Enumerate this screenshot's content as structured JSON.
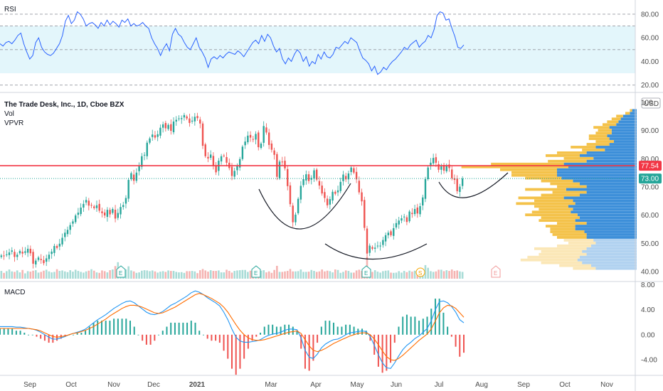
{
  "header": {
    "symbol_title": "The Trade Desk, Inc., 1D, Cboe BZX",
    "vol_label": "Vol",
    "vpvr_label": "VPVR",
    "currency": "USD"
  },
  "colors": {
    "up": "#26a69a",
    "down": "#ef5350",
    "rsi_line": "#2962ff",
    "rsi_band": "#e3f6fb",
    "macd_line": "#2196f3",
    "signal_line": "#ff6d00",
    "hline": "#f23645",
    "arc": "#131722",
    "vp_up": "#3d8fd9",
    "vp_down": "#f4c24a"
  },
  "chart_data": [
    {
      "type": "line",
      "title": "RSI",
      "ylim": [
        15,
        92
      ],
      "ticks": [
        "80.00",
        "60.00",
        "40.00",
        "20.00"
      ],
      "band": [
        30,
        70
      ],
      "guides": [
        80,
        70,
        50,
        20
      ],
      "series": [
        {
          "values": [
            55,
            53,
            56,
            57,
            55,
            58,
            62,
            64,
            55,
            48,
            42,
            45,
            56,
            60,
            52,
            48,
            46,
            45,
            47,
            51,
            55,
            62,
            74,
            79,
            72,
            75,
            82,
            80,
            76,
            70,
            72,
            73,
            71,
            68,
            73,
            70,
            75,
            71,
            74,
            72,
            69,
            75,
            73,
            76,
            70,
            72,
            70,
            71,
            73,
            70,
            68,
            60,
            55,
            51,
            45,
            51,
            55,
            49,
            63,
            68,
            63,
            61,
            56,
            52,
            50,
            55,
            60,
            52,
            48,
            43,
            35,
            42,
            44,
            42,
            45,
            43,
            46,
            48,
            47,
            46,
            49,
            47,
            44,
            48,
            52,
            56,
            58,
            55,
            62,
            57,
            63,
            60,
            53,
            48,
            51,
            42,
            38,
            43,
            40,
            46,
            50,
            47,
            40,
            44,
            36,
            40,
            38,
            46,
            42,
            48,
            44,
            43,
            46,
            52,
            51,
            54,
            57,
            55,
            60,
            58,
            56,
            49,
            43,
            41,
            38,
            32,
            36,
            29,
            31,
            35,
            33,
            37,
            40,
            42,
            45,
            48,
            52,
            50,
            54,
            56,
            58,
            52,
            55,
            57,
            62,
            60,
            67,
            79,
            82,
            81,
            75,
            76,
            68,
            61,
            52,
            51,
            54
          ]
        }
      ]
    },
    {
      "type": "candlestick",
      "categories": [
        "Sep",
        "Oct",
        "Nov",
        "Dec",
        "2021",
        "Mar",
        "Apr",
        "May",
        "Jun",
        "Jul",
        "Aug",
        "Sep",
        "Oct",
        "Nov"
      ],
      "ylim": [
        38,
        101
      ],
      "ticks": [
        "100",
        "90.00",
        "80.00",
        "70.00",
        "60.00",
        "50.00",
        "40.00"
      ],
      "hline": {
        "value": 77.54,
        "label": "77.54"
      },
      "last": {
        "value": 73.0,
        "label": "73.00"
      },
      "closes": [
        45.7,
        45.5,
        46.1,
        46.8,
        47.5,
        45.2,
        46.0,
        47.3,
        46.4,
        47.2,
        48.1,
        46.5,
        42.8,
        43.9,
        45.0,
        44.1,
        43.0,
        44.7,
        46.0,
        47.1,
        49.1,
        48.4,
        49.9,
        52.0,
        53.8,
        54.8,
        56.5,
        57.8,
        59.9,
        60.9,
        62.7,
        64.0,
        65.4,
        63.4,
        63.6,
        62.5,
        63.5,
        61.6,
        60.7,
        59.9,
        61.9,
        60.3,
        62.2,
        58.8,
        60.8,
        62.9,
        63.6,
        66.1,
        72.5,
        74.9,
        72.2,
        75.1,
        77.4,
        80.9,
        81.4,
        85.7,
        87.2,
        88.6,
        87.5,
        88.7,
        91.0,
        92.2,
        90.8,
        92.0,
        89.9,
        93.2,
        93.8,
        94.3,
        94.4,
        95.5,
        94.3,
        92.7,
        93.5,
        94.9,
        94.4,
        92.5,
        84.6,
        80.9,
        80.1,
        81.5,
        77.7,
        75.2,
        79.3,
        80.9,
        81.1,
        78.6,
        76.7,
        73.9,
        75.7,
        77.4,
        79.9,
        84.3,
        86.1,
        88.2,
        87.5,
        86.8,
        88.8,
        84.1,
        85.4,
        91.6,
        89.3,
        84.9,
        83.2,
        81.4,
        73.6,
        79.0,
        78.8,
        76.6,
        70.3,
        63.9,
        57.5,
        60.2,
        65.8,
        70.4,
        72.8,
        74.5,
        72.1,
        73.2,
        75.9,
        72.6,
        70.5,
        67.7,
        66.1,
        63.5,
        65.7,
        68.3,
        67.6,
        68.8,
        71.8,
        74.4,
        72.7,
        74.8,
        76.9,
        75.1,
        72.7,
        68.1,
        64.9,
        55.5,
        46.4,
        49.2,
        48.1,
        48.5,
        49.2,
        49.2,
        51.2,
        52.9,
        53.8,
        52.9,
        55.4,
        57.2,
        58.1,
        58.9,
        59.5,
        57.6,
        61.3,
        60.4,
        62.2,
        60.6,
        63.2,
        66.3,
        72.8,
        76.9,
        78.6,
        80.3,
        78.6,
        76.1,
        77.3,
        75.8,
        77.7,
        76.7,
        73.1,
        72.5,
        68.5,
        70.1,
        73.0
      ]
    },
    {
      "type": "bar",
      "title": "Vol",
      "values": [
        3.2,
        2.4,
        3.1,
        3.8,
        3.0,
        2.8,
        3.4,
        2.6,
        3.6,
        2.2,
        3.1,
        2.9,
        3.3,
        3.5,
        2.5,
        2.8,
        3.3,
        3.7,
        3.0,
        2.6,
        2.8,
        3.9,
        3.2,
        3.4,
        3.0,
        2.7,
        3.5,
        2.9,
        3.7,
        3.2,
        2.8,
        2.5,
        3.0,
        3.3,
        3.9,
        3.3,
        2.6,
        2.4,
        3.4,
        3.1,
        2.6,
        3.5,
        3.8,
        5.2,
        6.8,
        3.4,
        2.9,
        3.8,
        5.1,
        3.4,
        3.0,
        2.4,
        2.6,
        3.3,
        3.5,
        3.4,
        3.1,
        3.4,
        3.0,
        2.5,
        2.9,
        3.1,
        2.8,
        3.4,
        3.2,
        3.2,
        2.8,
        2.6,
        2.7,
        2.4,
        3.1,
        3.1,
        3.2,
        3.0,
        2.3,
        3.5,
        4.0,
        3.4,
        2.9,
        3.5,
        3.2,
        3.2,
        3.4,
        2.6,
        2.6,
        3.7,
        3.2,
        2.5,
        3.2,
        3.4,
        3.5,
        3.6,
        3.6,
        2.8,
        3.3,
        3.0,
        3.5,
        3.1,
        3.3,
        3.5,
        2.6,
        3.0,
        2.4,
        3.6,
        5.3,
        2.8,
        2.8,
        3.0,
        3.2,
        4.0,
        3.0,
        3.0,
        3.1,
        3.8,
        2.8,
        2.8,
        2.9,
        3.6,
        3.2,
        2.8,
        3.0,
        3.8,
        3.0,
        3.3,
        3.1,
        2.6,
        3.8,
        3.6,
        2.4,
        2.8,
        3.4,
        3.2,
        2.5,
        2.5,
        3.4,
        3.7,
        3.2,
        4.6,
        8.8,
        4.0,
        2.8,
        3.5,
        2.9,
        2.5,
        3.1,
        3.3,
        3.4,
        2.5,
        2.4,
        2.5,
        3.1,
        2.5,
        3.2,
        2.7,
        3.3,
        2.9,
        3.3,
        3.3,
        3.0,
        3.8,
        5.6,
        4.5,
        3.1,
        2.8,
        3.0,
        3.7,
        3.7,
        3.1,
        3.5,
        3.2,
        3.8,
        3.2,
        3.4,
        3.0,
        2.8
      ],
      "earnings_markers": [
        "E",
        "E",
        "E",
        "S",
        "E"
      ]
    },
    {
      "type": "histogram",
      "title": "VPVR",
      "price_bins": [
        97,
        96,
        95,
        94,
        93,
        92,
        91,
        90,
        89,
        88,
        87,
        86,
        85,
        84,
        83,
        82,
        81,
        80,
        79,
        78,
        77,
        76,
        75,
        74,
        73,
        72,
        71,
        70,
        69,
        68,
        67,
        66,
        65,
        64,
        63,
        62,
        61,
        60,
        59,
        58,
        57,
        56,
        55,
        54,
        53,
        52,
        51,
        50,
        49,
        48,
        47,
        46,
        45,
        44,
        43,
        42,
        41,
        40
      ],
      "up": [
        4,
        6,
        12,
        14,
        16,
        18,
        24,
        22,
        22,
        26,
        24,
        20,
        24,
        36,
        28,
        44,
        50,
        38,
        44,
        64,
        60,
        70,
        70,
        70,
        66,
        56,
        50,
        44,
        62,
        44,
        50,
        64,
        56,
        54,
        60,
        56,
        58,
        52,
        50,
        54,
        44,
        54,
        54,
        46,
        44,
        44,
        38,
        36,
        40,
        44,
        48,
        44,
        50,
        52,
        48,
        40,
        36,
        0
      ],
      "down": [
        2,
        4,
        6,
        8,
        10,
        12,
        14,
        12,
        14,
        16,
        18,
        16,
        20,
        22,
        20,
        26,
        30,
        26,
        34,
        64,
        94,
        50,
        40,
        40,
        32,
        28,
        26,
        26,
        36,
        30,
        34,
        40,
        34,
        52,
        30,
        30,
        34,
        46,
        34,
        32,
        26,
        26,
        22,
        30,
        30,
        26,
        26,
        24,
        30,
        46,
        36,
        42,
        46,
        50,
        36,
        28,
        20,
        0
      ]
    },
    {
      "type": "line",
      "title": "MACD",
      "ylim": [
        -6.5,
        8.5
      ],
      "ticks": [
        "8.00",
        "4.00",
        "0.00",
        "-4.00"
      ],
      "series": [
        {
          "values": [
            1.3,
            1.3,
            1.3,
            1.3,
            1.2,
            1.2,
            1.1,
            1.0,
            0.9,
            0.7,
            0.4,
            0.0,
            -0.4,
            -0.7,
            -0.7,
            -0.5,
            -0.3,
            0.0,
            0.2,
            0.4,
            0.6,
            0.9,
            1.4,
            1.9,
            2.4,
            2.8,
            3.2,
            3.7,
            4.2,
            4.6,
            5.0,
            5.3,
            5.4,
            5.1,
            4.6,
            4.1,
            3.6,
            3.3,
            3.2,
            3.4,
            3.7,
            4.2,
            4.7,
            5.0,
            5.4,
            5.8,
            6.2,
            6.7,
            7.0,
            6.8,
            6.4,
            5.9,
            5.5,
            5.1,
            4.6,
            3.6,
            2.4,
            0.9,
            -0.4,
            -1.0,
            -1.2,
            -1.2,
            -1.1,
            -1.0,
            -0.8,
            -0.4,
            -0.1,
            0.1,
            0.2,
            0.4,
            0.7,
            0.9,
            0.9,
            0.8,
            -0.5,
            -2.5,
            -3.6,
            -3.8,
            -3.1,
            -2.1,
            -1.5,
            -1.1,
            -0.8,
            -0.7,
            -0.4,
            0.0,
            0.3,
            0.4,
            0.5,
            0.6,
            0.5,
            -0.3,
            -1.7,
            -3.2,
            -4.5,
            -5.3,
            -5.4,
            -4.5,
            -3.4,
            -2.4,
            -1.7,
            -1.2,
            -0.6,
            -0.2,
            0.4,
            1.0,
            2.2,
            4.0,
            5.3,
            5.4,
            5.1,
            4.5,
            3.6,
            2.4,
            1.9
          ]
        },
        {
          "values": [
            1.0,
            1.0,
            1.0,
            1.0,
            1.0,
            1.0,
            1.0,
            1.0,
            0.9,
            0.8,
            0.6,
            0.3,
            0.0,
            -0.3,
            -0.4,
            -0.3,
            -0.2,
            0.0,
            0.2,
            0.3,
            0.5,
            0.7,
            1.0,
            1.3,
            1.7,
            2.1,
            2.5,
            3.0,
            3.4,
            3.8,
            4.2,
            4.5,
            4.7,
            4.7,
            4.6,
            4.4,
            4.1,
            3.8,
            3.5,
            3.4,
            3.5,
            3.8,
            4.1,
            4.4,
            4.8,
            5.2,
            5.6,
            6.0,
            6.4,
            6.6,
            6.4,
            6.1,
            5.8,
            5.4,
            5.0,
            4.4,
            3.6,
            2.6,
            1.6,
            0.7,
            0.0,
            -0.5,
            -0.8,
            -0.9,
            -0.9,
            -0.8,
            -0.6,
            -0.4,
            -0.2,
            0.0,
            0.2,
            0.4,
            0.5,
            0.6,
            0.2,
            -0.8,
            -1.8,
            -2.5,
            -2.7,
            -2.5,
            -2.2,
            -1.8,
            -1.4,
            -1.1,
            -0.8,
            -0.5,
            -0.2,
            0.0,
            0.2,
            0.3,
            0.3,
            0.0,
            -0.7,
            -1.6,
            -2.6,
            -3.5,
            -4.0,
            -4.1,
            -3.8,
            -3.3,
            -2.7,
            -2.1,
            -1.5,
            -0.9,
            -0.4,
            0.1,
            0.9,
            2.2,
            3.5,
            4.3,
            4.7,
            4.6,
            4.2,
            3.5,
            2.8
          ]
        }
      ]
    }
  ],
  "time_axis": {
    "labels": [
      "Sep",
      "Oct",
      "Nov",
      "Dec",
      "2021",
      "Mar",
      "Apr",
      "May",
      "Jun",
      "Jul",
      "Aug",
      "Sep",
      "Oct",
      "Nov"
    ]
  }
}
